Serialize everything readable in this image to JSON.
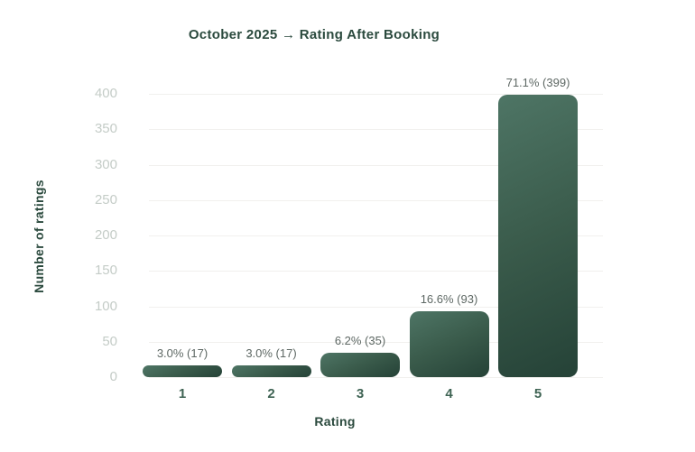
{
  "chart_data": {
    "type": "bar",
    "title": "October 2025 → Rating After Booking",
    "xlabel": "Rating",
    "ylabel": "Number of ratings",
    "categories": [
      "1",
      "2",
      "3",
      "4",
      "5"
    ],
    "values": [
      17,
      17,
      35,
      93,
      399
    ],
    "bar_labels": [
      "3.0% (17)",
      "3.0% (17)",
      "6.2% (35)",
      "16.6% (93)",
      "71.1% (399)"
    ],
    "ylim": [
      0,
      400
    ],
    "yticks": [
      0,
      50,
      100,
      150,
      200,
      250,
      300,
      350,
      400
    ],
    "grid": true,
    "legend_position": "none",
    "colors": {
      "bar_gradient_top": "#4e7565",
      "bar_gradient_mid": "#3a5b4b",
      "bar_gradient_bottom": "#254237",
      "title": "#2b4a3e",
      "axis_title": "#2b4a3e",
      "x_tick": "#3e6353",
      "y_tick": "#c4ccc7",
      "value_label": "#5e6864",
      "gridline": "#f1f0ee",
      "background": "#ffffff"
    }
  }
}
